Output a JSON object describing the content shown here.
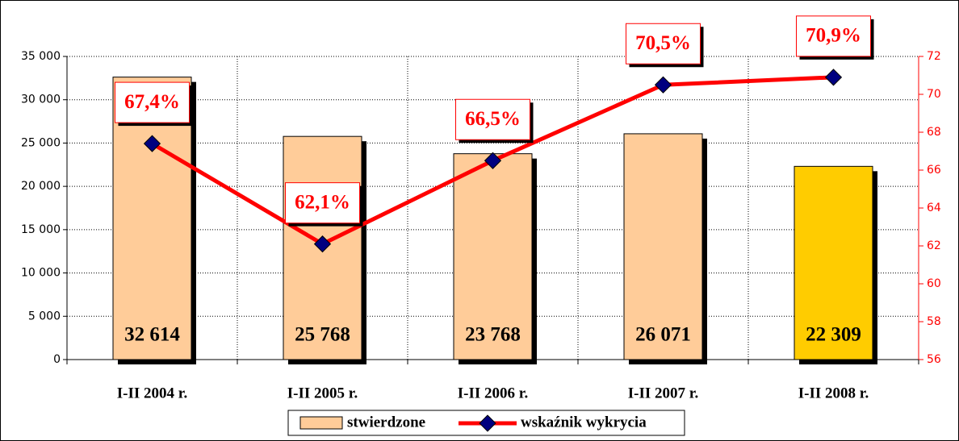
{
  "chart_data": {
    "type": "bar_line",
    "categories": [
      "I-II 2004 r.",
      "I-II 2005 r.",
      "I-II 2006 r.",
      "I-II 2007 r.",
      "I-II 2008 r."
    ],
    "series": [
      {
        "name": "stwierdzone",
        "type": "bar",
        "color": "#FFCC99",
        "colors": [
          "#FFCC99",
          "#FFCC99",
          "#FFCC99",
          "#FFCC99",
          "#FFCC00"
        ],
        "values": [
          32614,
          25768,
          23768,
          26071,
          22309
        ],
        "value_labels": [
          "32 614",
          "25 768",
          "23 768",
          "26 071",
          "22 309"
        ]
      },
      {
        "name": "wskaźnik wykrycia",
        "type": "line",
        "axis": "y2",
        "color": "#FF0000",
        "marker_color": "#000080",
        "values": [
          67.4,
          62.1,
          66.5,
          70.5,
          70.9
        ],
        "value_labels": [
          "67,4%",
          "62,1%",
          "66,5%",
          "70,5%",
          "70,9%"
        ]
      }
    ],
    "ylim": [
      0,
      35000
    ],
    "yticks": [
      0,
      {
        "value": 5000,
        "label": "5 000"
      },
      {
        "value": 10000,
        "label": "10 000"
      },
      {
        "value": 15000,
        "label": "15 000"
      },
      {
        "value": 20000,
        "label": "20 000"
      },
      {
        "value": 25000,
        "label": "25 000"
      },
      {
        "value": 30000,
        "label": "30 000"
      },
      {
        "value": 35000,
        "label": "35 000"
      }
    ],
    "y2lim": [
      56,
      72
    ],
    "y2ticks": [
      56,
      58,
      60,
      62,
      64,
      66,
      68,
      70,
      72
    ],
    "grid": true,
    "legend": "bottom"
  }
}
